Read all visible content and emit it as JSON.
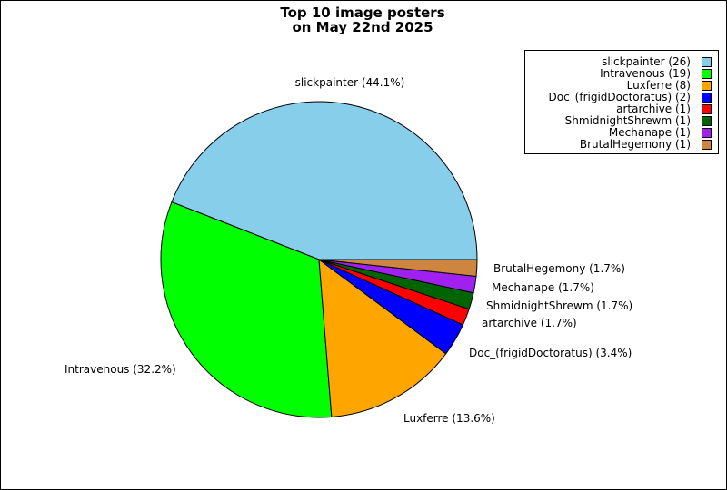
{
  "chart_data": {
    "type": "pie",
    "title_lines": [
      "Top 10 image posters",
      "on May 22nd 2025"
    ],
    "slices": [
      {
        "name": "slickpainter",
        "value": 26,
        "percent_label": "slickpainter (44.1%)",
        "legend_label": "slickpainter (26)",
        "color": "#87CEEB"
      },
      {
        "name": "Intravenous",
        "value": 19,
        "percent_label": "Intravenous (32.2%)",
        "legend_label": "Intravenous (19)",
        "color": "#00FF00"
      },
      {
        "name": "Luxferre",
        "value": 8,
        "percent_label": "Luxferre (13.6%)",
        "legend_label": "Luxferre (8)",
        "color": "#FFA500"
      },
      {
        "name": "Doc_(frigidDoctoratus)",
        "value": 2,
        "percent_label": "Doc_(frigidDoctoratus) (3.4%)",
        "legend_label": "Doc_(frigidDoctoratus) (2)",
        "color": "#0000FF"
      },
      {
        "name": "artarchive",
        "value": 1,
        "percent_label": "artarchive (1.7%)",
        "legend_label": "artarchive (1)",
        "color": "#FF0000"
      },
      {
        "name": "ShmidnightShrewm",
        "value": 1,
        "percent_label": "ShmidnightShrewm (1.7%)",
        "legend_label": "ShmidnightShrewm (1)",
        "color": "#006400"
      },
      {
        "name": "Mechanape",
        "value": 1,
        "percent_label": "Mechanape (1.7%)",
        "legend_label": "Mechanape (1)",
        "color": "#A020F0"
      },
      {
        "name": "BrutalHegemony",
        "value": 1,
        "percent_label": "BrutalHegemony (1.7%)",
        "legend_label": "BrutalHegemony (1)",
        "color": "#CD853F"
      }
    ],
    "legend_position": "top-right"
  }
}
